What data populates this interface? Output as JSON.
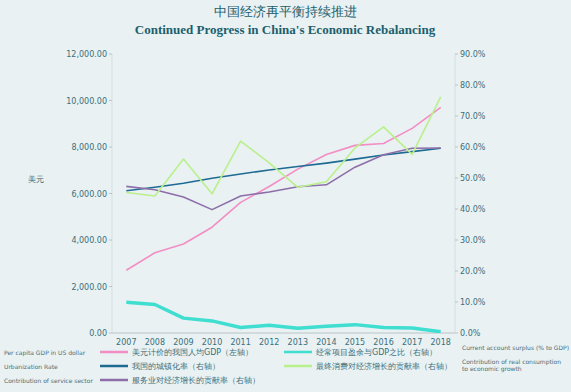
{
  "chart_data": {
    "type": "line",
    "title": "中国经济再平衡持续推进",
    "subtitle": "Continued Progress in China's Economic Rebalancing",
    "y_label": "美元",
    "categories": [
      "2007",
      "2008",
      "2009",
      "2010",
      "2011",
      "2012",
      "2013",
      "2014",
      "2015",
      "2016",
      "2017",
      "2018"
    ],
    "ylim": [
      0,
      12000
    ],
    "yticks": [
      {
        "value": 0,
        "label": "0.00"
      },
      {
        "value": 2000,
        "label": "2,000.00"
      },
      {
        "value": 4000,
        "label": "4,000.00"
      },
      {
        "value": 6000,
        "label": "6,000.00"
      },
      {
        "value": 8000,
        "label": "8,000.00"
      },
      {
        "value": 10000,
        "label": "10,000.00"
      },
      {
        "value": 12000,
        "label": "12,000.00"
      }
    ],
    "y2lim": [
      0,
      90
    ],
    "y2ticks": [
      {
        "value": 0,
        "label": "0.0%"
      },
      {
        "value": 10,
        "label": "10.0%"
      },
      {
        "value": 20,
        "label": "20.0%"
      },
      {
        "value": 30,
        "label": "30.0%"
      },
      {
        "value": 40,
        "label": "40.0%"
      },
      {
        "value": 50,
        "label": "50.0%"
      },
      {
        "value": 60,
        "label": "60.0%"
      },
      {
        "value": 70,
        "label": "70.0%"
      },
      {
        "value": 80,
        "label": "80.0%"
      },
      {
        "value": 90,
        "label": "90.0%"
      }
    ],
    "grid": false,
    "legend": "bottom",
    "series": [
      {
        "name": "美元计价的我国人均GDP（左轴）",
        "name_en": "Per capita GDP in US dollar",
        "color": "#f28ec4",
        "values": [
          2700,
          3450,
          3830,
          4550,
          5620,
          6300,
          7050,
          7680,
          8070,
          8150,
          8800,
          9700
        ]
      },
      {
        "name": "我国的城镇化率（右轴）",
        "name_en": "Urbanization Rate",
        "color": "#1d6a93",
        "axis": "y2",
        "values": [
          45.9,
          47.0,
          48.3,
          49.9,
          51.3,
          52.6,
          53.7,
          54.8,
          56.1,
          57.4,
          58.5,
          59.6
        ]
      },
      {
        "name": "服务业对经济增长的贡献率（右轴）",
        "name_en": "Contribution of service sector",
        "color": "#8d6ea9",
        "axis": "y2",
        "values": [
          47.3,
          46.2,
          43.9,
          39.8,
          44.2,
          45.5,
          47.2,
          47.8,
          53.5,
          57.5,
          59.6,
          59.7
        ]
      },
      {
        "name": "经常项目盈余与GDP之比（右轴）",
        "name_en": "Current account surplus (% to GDP)",
        "color": "#3fded0",
        "axis": "y2",
        "values": [
          9.9,
          9.2,
          4.8,
          3.9,
          1.8,
          2.5,
          1.5,
          2.2,
          2.7,
          1.8,
          1.6,
          0.4
        ]
      },
      {
        "name": "最终消费对经济增长的贡献率（右轴）",
        "name_en": "Contribution of real consumption to economic growth",
        "color": "#b9f08c",
        "axis": "y2",
        "values": [
          45.3,
          44.2,
          56.1,
          44.9,
          61.9,
          54.9,
          47.0,
          48.8,
          59.7,
          66.5,
          57.6,
          76.2
        ]
      }
    ]
  }
}
